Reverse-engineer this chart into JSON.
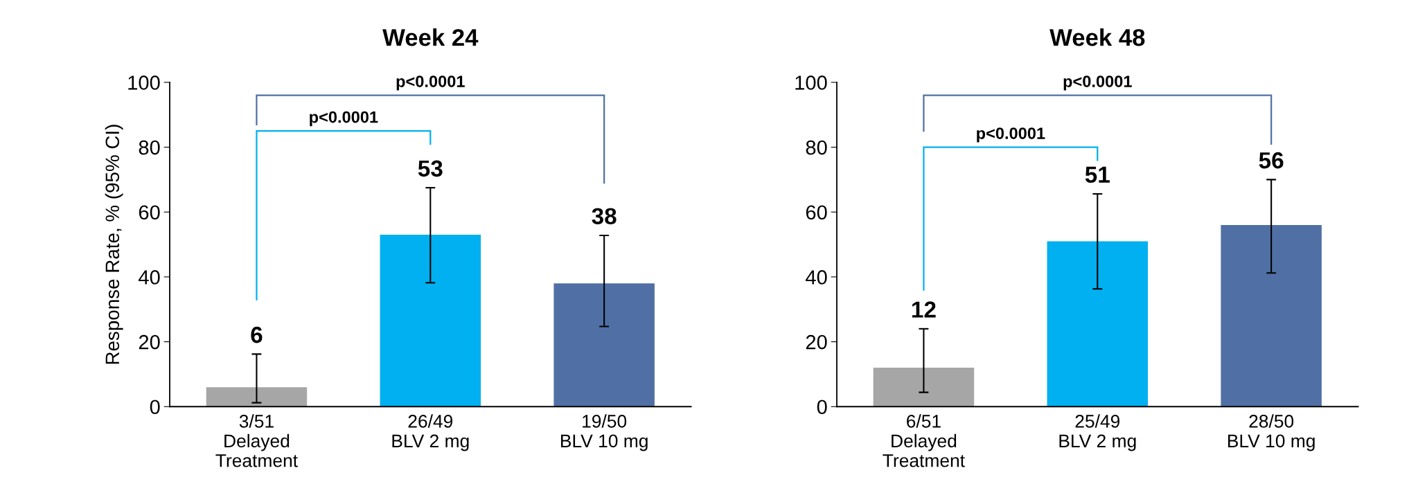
{
  "chart_data": [
    {
      "type": "bar",
      "title": "Week 24",
      "ylabel": "Response Rate, % (95% CI)",
      "categories": [
        "3/51\nDelayed\nTreatment",
        "26/49\nBLV 2 mg",
        "19/50\nBLV 10 mg"
      ],
      "values": [
        6,
        53,
        38
      ],
      "colors": [
        "#a6a6a6",
        "#00b0f0",
        "#5070a5"
      ],
      "errors": [
        [
          1.2,
          16.2
        ],
        [
          38.2,
          67.5
        ],
        [
          24.7,
          52.8
        ]
      ],
      "data_labels": true,
      "ylim": [
        0,
        100
      ],
      "yticks": [
        0,
        20,
        40,
        60,
        80,
        100
      ],
      "grid": false,
      "legend": false,
      "annotations": [
        "p<0.0001",
        "p<0.0001"
      ]
    },
    {
      "type": "bar",
      "title": "Week 48",
      "categories": [
        "6/51\nDelayed\nTreatment",
        "25/49\nBLV 2 mg",
        "28/50\nBLV 10 mg"
      ],
      "values": [
        12,
        51,
        56
      ],
      "colors": [
        "#a6a6a6",
        "#00b0f0",
        "#5070a5"
      ],
      "errors": [
        [
          4.4,
          24
        ],
        [
          36.3,
          65.6
        ],
        [
          41.2,
          70
        ]
      ],
      "data_labels": true,
      "ylim": [
        0,
        100
      ],
      "yticks": [
        0,
        20,
        40,
        60,
        80,
        100
      ],
      "grid": false,
      "legend": false,
      "annotations": [
        "p<0.0001",
        "p<0.0001"
      ]
    }
  ]
}
